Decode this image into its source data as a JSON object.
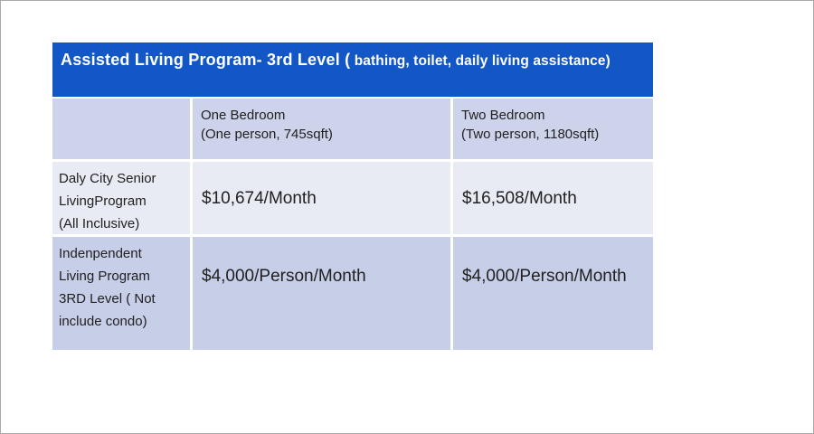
{
  "colors": {
    "title_bg": "#1356C5",
    "title_text": "#FFFFFF",
    "header_band": "#CDD3EA",
    "row1_bg": "#E8EAF4",
    "row2_bg": "#C7CEE8",
    "body_text": "#212121",
    "page_border": "#A9A9A9"
  },
  "table": {
    "title_main": "Assisted Living Program- 3rd Level (",
    "title_sub": " bathing, toilet, daily living assistance)",
    "column_headers": [
      [
        "One Bedroom",
        "(One person, 745sqft)"
      ],
      [
        "Two Bedroom",
        "(Two person, 1180sqft)"
      ]
    ],
    "rows": [
      {
        "label": [
          "Daly City Senior",
          "LivingProgram",
          "(All Inclusive)"
        ],
        "values": [
          "$10,674/Month",
          "$16,508/Month"
        ]
      },
      {
        "label": [
          "Indenpendent",
          "Living Program",
          "3RD Level ( Not",
          "include condo)"
        ],
        "values": [
          "$4,000/Person/Month",
          "$4,000/Person/Month"
        ]
      }
    ]
  }
}
